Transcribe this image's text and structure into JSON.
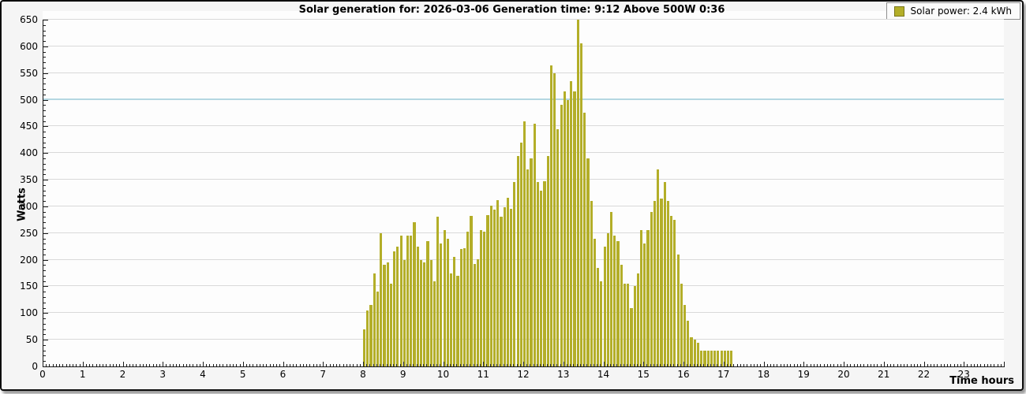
{
  "title": "Solar generation for: 2026-03-06 Generation time: 9:12 Above 500W 0:36",
  "legend": {
    "label": "Solar power: 2.4 kWh",
    "swatch_color": "#b3ae28"
  },
  "chart_data": {
    "type": "bar",
    "title": "Solar generation for: 2026-03-06 Generation time: 9:12 Above 500W 0:36",
    "ylabel": "Watts",
    "xlabel": "Time hours",
    "ylim": [
      0,
      650
    ],
    "xlim_hours": [
      0,
      24
    ],
    "grid": true,
    "legend_position": "top-right",
    "bar_color": "#b3ae28",
    "gridline_color": "#d9d9d9",
    "threshold_line": {
      "value": 500,
      "color": "#b4d7e2"
    },
    "y_ticks": [
      0,
      50,
      100,
      150,
      200,
      250,
      300,
      350,
      400,
      450,
      500,
      550,
      600,
      650
    ],
    "x_ticks": [
      0,
      1,
      2,
      3,
      4,
      5,
      6,
      7,
      8,
      9,
      10,
      11,
      12,
      13,
      14,
      15,
      16,
      17,
      18,
      19,
      20,
      21,
      22,
      23
    ],
    "series": [
      {
        "name": "Solar power",
        "unit": "W",
        "interval_minutes": 5,
        "times": [
          "8:00",
          "8:05",
          "8:10",
          "8:15",
          "8:20",
          "8:25",
          "8:30",
          "8:35",
          "8:40",
          "8:45",
          "8:50",
          "8:55",
          "9:00",
          "9:05",
          "9:10",
          "9:15",
          "9:20",
          "9:25",
          "9:30",
          "9:35",
          "9:40",
          "9:45",
          "9:50",
          "9:55",
          "10:00",
          "10:05",
          "10:10",
          "10:15",
          "10:20",
          "10:25",
          "10:30",
          "10:35",
          "10:40",
          "10:45",
          "10:50",
          "10:55",
          "11:00",
          "11:05",
          "11:10",
          "11:15",
          "11:20",
          "11:25",
          "11:30",
          "11:35",
          "11:40",
          "11:45",
          "11:50",
          "11:55",
          "12:00",
          "12:05",
          "12:10",
          "12:15",
          "12:20",
          "12:25",
          "12:30",
          "12:35",
          "12:40",
          "12:45",
          "12:50",
          "12:55",
          "13:00",
          "13:05",
          "13:10",
          "13:15",
          "13:20",
          "13:25",
          "13:30",
          "13:35",
          "13:40",
          "13:45",
          "13:50",
          "13:55",
          "14:00",
          "14:05",
          "14:10",
          "14:15",
          "14:20",
          "14:25",
          "14:30",
          "14:35",
          "14:40",
          "14:45",
          "14:50",
          "14:55",
          "15:00",
          "15:05",
          "15:10",
          "15:15",
          "15:20",
          "15:25",
          "15:30",
          "15:35",
          "15:40",
          "15:45",
          "15:50",
          "15:55",
          "16:00",
          "16:05",
          "16:10",
          "16:15",
          "16:20",
          "16:25",
          "16:30",
          "16:35",
          "16:40",
          "16:45",
          "16:50",
          "16:55",
          "17:00",
          "17:05",
          "17:10"
        ],
        "watts": [
          70,
          105,
          115,
          175,
          140,
          250,
          190,
          195,
          155,
          215,
          225,
          245,
          200,
          245,
          245,
          270,
          225,
          200,
          195,
          235,
          200,
          160,
          280,
          230,
          255,
          240,
          175,
          205,
          170,
          220,
          222,
          253,
          282,
          192,
          201,
          256,
          253,
          283,
          301,
          294,
          312,
          280,
          298,
          316,
          295,
          345,
          395,
          420,
          460,
          370,
          390,
          455,
          345,
          330,
          347,
          395,
          565,
          550,
          445,
          490,
          515,
          500,
          535,
          515,
          650,
          605,
          475,
          390,
          310,
          240,
          185,
          160,
          225,
          250,
          290,
          245,
          235,
          190,
          155,
          155,
          110,
          150,
          175,
          255,
          230,
          255,
          290,
          310,
          370,
          315,
          345,
          310,
          282,
          275,
          210,
          155,
          115,
          85,
          55,
          50,
          45,
          30,
          30,
          30,
          30,
          30,
          30,
          30,
          30,
          30,
          30
        ]
      }
    ]
  }
}
